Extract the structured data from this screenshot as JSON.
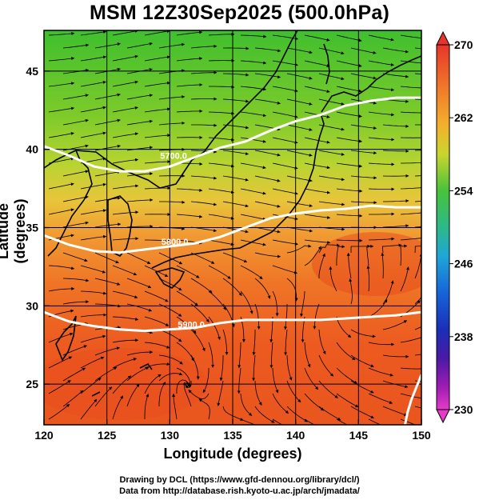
{
  "title": "MSM 12Z30Sep2025 (500.0hPa)",
  "axes": {
    "x_label": "Longitude (degrees)",
    "y_label": "Latitude  (degrees)",
    "x_ticks": [
      120,
      125,
      130,
      135,
      140,
      145,
      150
    ],
    "y_ticks": [
      25,
      30,
      35,
      40,
      45
    ],
    "x_range": [
      120,
      150
    ],
    "y_range": [
      22.4,
      47.6
    ]
  },
  "colorbar": {
    "ticks": [
      230,
      238,
      246,
      254,
      262,
      270
    ],
    "range": [
      230,
      270
    ]
  },
  "contours": [
    {
      "label": "5700.0",
      "lon": 130.3,
      "lat": 39.4,
      "path": [
        [
          120,
          40.2
        ],
        [
          122,
          39.6
        ],
        [
          124,
          38.9
        ],
        [
          126,
          38.6
        ],
        [
          128,
          38.6
        ],
        [
          130,
          38.9
        ],
        [
          132,
          39.5
        ],
        [
          134,
          40.1
        ],
        [
          136,
          40.5
        ],
        [
          138,
          41.2
        ],
        [
          140,
          41.8
        ],
        [
          142,
          42.2
        ],
        [
          144,
          42.8
        ],
        [
          146,
          43.1
        ],
        [
          148,
          43.3
        ],
        [
          150,
          43.3
        ]
      ]
    },
    {
      "label": "5800.0",
      "lon": 130.4,
      "lat": 33.9,
      "path": [
        [
          120,
          34.5
        ],
        [
          122,
          33.9
        ],
        [
          124,
          33.5
        ],
        [
          126,
          33.4
        ],
        [
          128,
          33.6
        ],
        [
          130,
          33.8
        ],
        [
          132,
          34.0
        ],
        [
          134,
          34.4
        ],
        [
          136,
          35.0
        ],
        [
          138,
          35.6
        ],
        [
          140,
          35.9
        ],
        [
          142,
          36.1
        ],
        [
          144,
          36.2
        ],
        [
          146,
          36.4
        ],
        [
          148,
          36.3
        ],
        [
          150,
          36.3
        ]
      ]
    },
    {
      "label": "5900.0",
      "lon": 131.7,
      "lat": 28.6,
      "path": [
        [
          120,
          29.6
        ],
        [
          122,
          29.0
        ],
        [
          124,
          28.7
        ],
        [
          126,
          28.5
        ],
        [
          128,
          28.4
        ],
        [
          130,
          28.5
        ],
        [
          132,
          28.6
        ],
        [
          134,
          28.9
        ],
        [
          136,
          29.1
        ],
        [
          138,
          29.1
        ],
        [
          140,
          29.1
        ],
        [
          142,
          29.1
        ],
        [
          144,
          29.2
        ],
        [
          146,
          29.3
        ],
        [
          148,
          29.4
        ],
        [
          150,
          29.6
        ]
      ]
    },
    {
      "label": "",
      "lon": 149,
      "lat": 25,
      "path": [
        [
          150,
          25.6
        ],
        [
          149.6,
          24.8
        ],
        [
          149.2,
          24.0
        ],
        [
          148.9,
          23.2
        ],
        [
          148.7,
          22.4
        ]
      ]
    }
  ],
  "credits": {
    "drawing": "Drawing by DCL (https://www.gfd-dennou.org/library/dcl/)",
    "data": "Data from http://database.rish.kyoto-u.ac.jp/arch/jmadata/"
  }
}
